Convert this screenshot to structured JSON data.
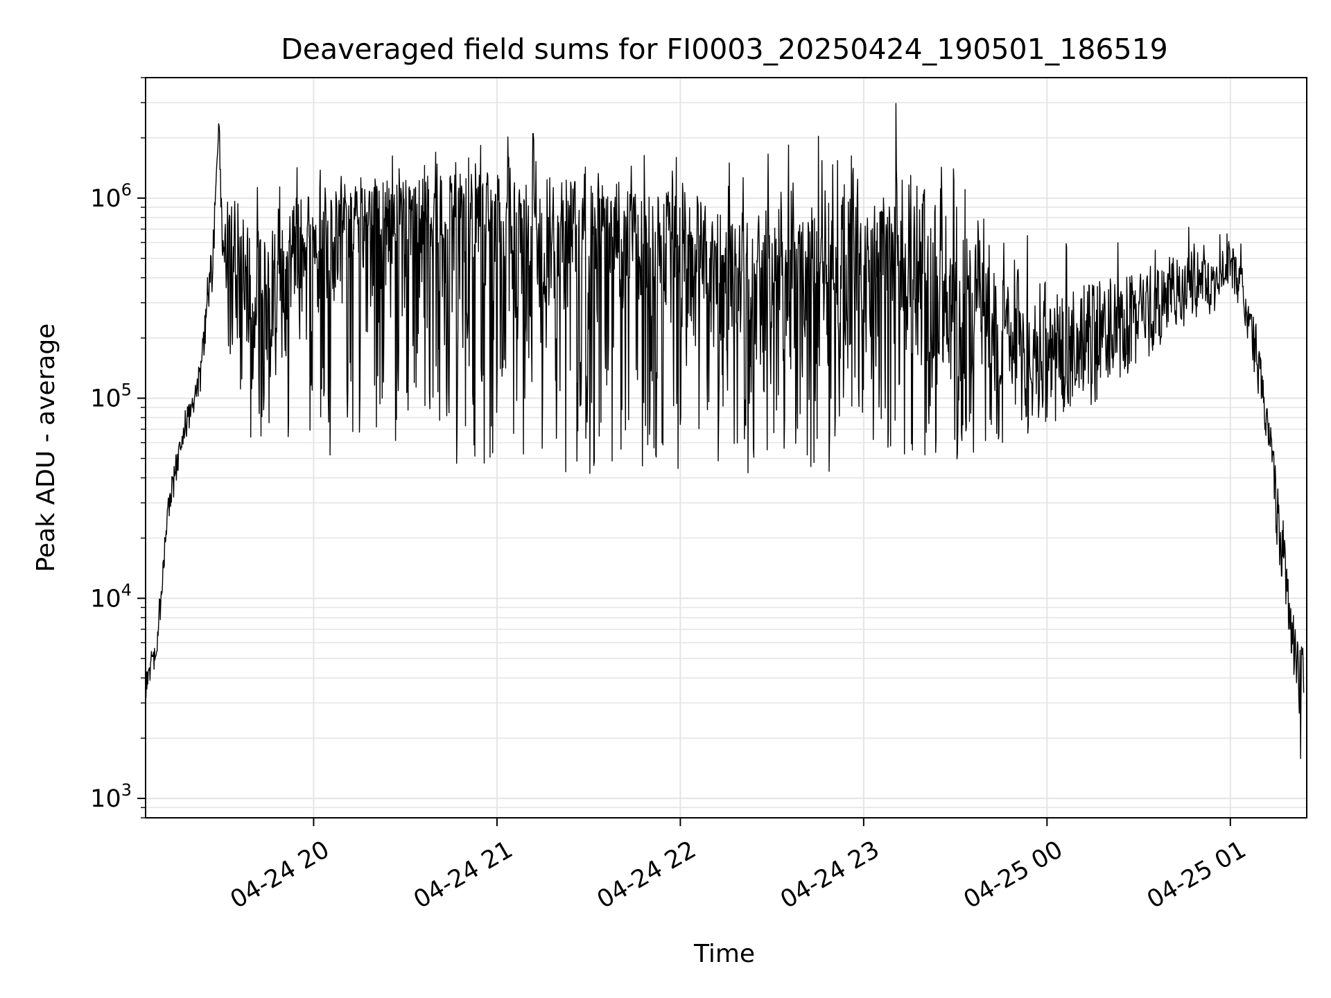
{
  "chart_data": {
    "type": "line",
    "title": "Deaveraged field sums for FI0003_20250424_190501_186519",
    "xlabel": "Time",
    "ylabel": "Peak ADU - average",
    "yscale": "log",
    "ylim": [
      800,
      4000000
    ],
    "xlim": [
      "2025-04-24 19:05:00",
      "2025-04-25 01:25:00"
    ],
    "grid": true,
    "line_color": "#000000",
    "grid_color": "#e5e5e5",
    "x_ticks": [
      {
        "t": "2025-04-24 20:00",
        "label": "04-24 20"
      },
      {
        "t": "2025-04-24 21:00",
        "label": "04-24 21"
      },
      {
        "t": "2025-04-24 22:00",
        "label": "04-24 22"
      },
      {
        "t": "2025-04-24 23:00",
        "label": "04-24 23"
      },
      {
        "t": "2025-04-25 00:00",
        "label": "04-25 00"
      },
      {
        "t": "2025-04-25 01:00",
        "label": "04-25 01"
      }
    ],
    "y_ticks": [
      {
        "value": 1000,
        "base": "10",
        "exp": "3"
      },
      {
        "value": 10000,
        "base": "10",
        "exp": "4"
      },
      {
        "value": 100000,
        "base": "10",
        "exp": "5"
      },
      {
        "value": 1000000,
        "base": "10",
        "exp": "6"
      }
    ],
    "series": [
      {
        "x": [
          "2025-04-24 19:05",
          "2025-04-24 19:08",
          "2025-04-24 19:10",
          "2025-04-24 19:12",
          "2025-04-24 19:15",
          "2025-04-24 19:18",
          "2025-04-24 19:20",
          "2025-04-24 19:23",
          "2025-04-24 19:25",
          "2025-04-24 19:27",
          "2025-04-24 19:29",
          "2025-04-24 19:30",
          "2025-04-24 19:32",
          "2025-04-24 19:35",
          "2025-04-24 19:40",
          "2025-04-24 19:45",
          "2025-04-24 19:50",
          "2025-04-24 20:00",
          "2025-04-24 20:15",
          "2025-04-24 20:30",
          "2025-04-24 20:45",
          "2025-04-24 21:00",
          "2025-04-24 21:15",
          "2025-04-24 21:30",
          "2025-04-24 21:45",
          "2025-04-24 22:00",
          "2025-04-24 22:15",
          "2025-04-24 22:30",
          "2025-04-24 22:45",
          "2025-04-24 23:00",
          "2025-04-24 23:15",
          "2025-04-24 23:30",
          "2025-04-24 23:45",
          "2025-04-25 00:00",
          "2025-04-25 00:15",
          "2025-04-25 00:30",
          "2025-04-25 00:45",
          "2025-04-25 00:55",
          "2025-04-25 01:00",
          "2025-04-25 01:03",
          "2025-04-25 01:06",
          "2025-04-25 01:10",
          "2025-04-25 01:13",
          "2025-04-25 01:16",
          "2025-04-25 01:19",
          "2025-04-25 01:21",
          "2025-04-25 01:23",
          "2025-04-25 01:24"
        ],
        "y": [
          3500,
          5000,
          10000,
          25000,
          45000,
          75000,
          85000,
          130000,
          250000,
          450000,
          2500000,
          650000,
          450000,
          350000,
          300000,
          400000,
          500000,
          600000,
          750000,
          800000,
          700000,
          600000,
          550000,
          500000,
          450000,
          400000,
          300000,
          250000,
          230000,
          250000,
          300000,
          200000,
          130000,
          130000,
          150000,
          220000,
          320000,
          350000,
          420000,
          380000,
          250000,
          120000,
          60000,
          25000,
          10000,
          5500,
          4500,
          4000
        ],
        "amp_hi": [
          1.2,
          1.2,
          1.2,
          1.2,
          1.2,
          1.2,
          1.2,
          1.2,
          1.3,
          1.4,
          1.0,
          1.4,
          2.2,
          2.5,
          2.5,
          2.0,
          2.0,
          1.8,
          1.7,
          1.6,
          1.9,
          2.2,
          2.4,
          2.4,
          2.6,
          2.8,
          3.2,
          3.5,
          4.2,
          4.5,
          4.5,
          4.0,
          3.5,
          3.0,
          2.5,
          2.0,
          1.7,
          1.5,
          1.4,
          1.4,
          1.4,
          1.3,
          1.3,
          1.3,
          1.3,
          1.4,
          1.5,
          1.5
        ],
        "amp_lo": [
          1.2,
          1.2,
          1.2,
          1.2,
          1.2,
          1.2,
          1.2,
          1.2,
          1.2,
          1.3,
          1.0,
          1.4,
          2.5,
          3.5,
          6.0,
          8.0,
          10.0,
          12.0,
          14.0,
          15.0,
          15.0,
          13.0,
          13.0,
          12.0,
          10.0,
          9.0,
          7.0,
          6.0,
          5.5,
          5.5,
          6.0,
          4.5,
          2.2,
          1.8,
          1.6,
          1.5,
          1.4,
          1.3,
          1.3,
          1.3,
          1.4,
          1.5,
          1.6,
          1.7,
          1.8,
          2.2,
          3.0,
          2.5
        ]
      }
    ]
  }
}
